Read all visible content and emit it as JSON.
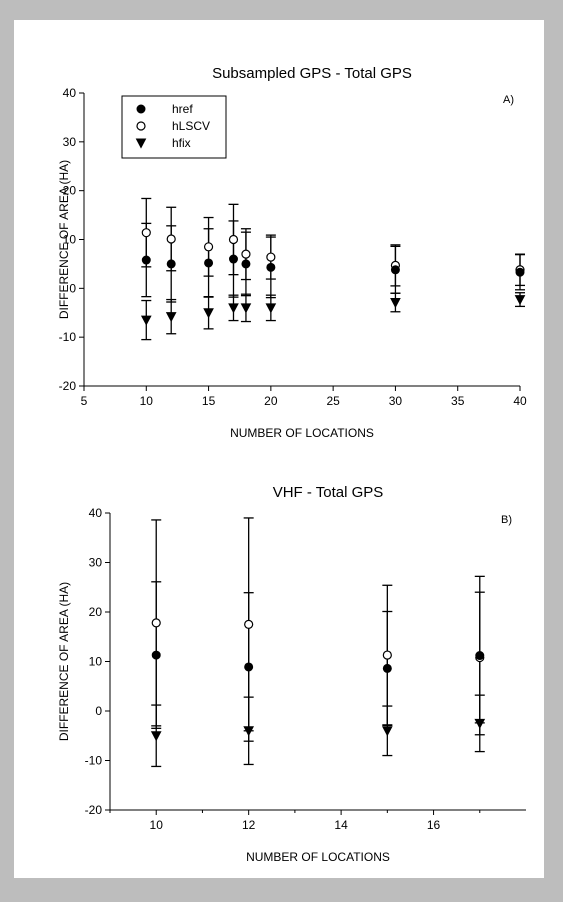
{
  "chart_data": [
    {
      "type": "scatter",
      "title": "Subsampled GPS - Total GPS",
      "panel_label": "A)",
      "xlabel": "NUMBER OF LOCATIONS",
      "ylabel": "DIFFERENCE OF AREA (HA)",
      "xlim": [
        5,
        40
      ],
      "ylim": [
        -20,
        40
      ],
      "xticks": [
        5,
        10,
        15,
        20,
        25,
        30,
        35,
        40
      ],
      "yticks": [
        -20,
        -10,
        0,
        10,
        20,
        30,
        40
      ],
      "grid": false,
      "legend": "top-left",
      "series": [
        {
          "name": "hLSCV",
          "marker": "circle-open",
          "x": [
            10,
            12,
            15,
            17,
            18,
            20,
            30,
            40
          ],
          "y": [
            11.4,
            10.1,
            8.5,
            10.0,
            7.0,
            6.4,
            4.7,
            3.8
          ],
          "err": [
            7.0,
            6.5,
            6.0,
            7.2,
            5.2,
            4.5,
            4.2,
            3.2
          ]
        },
        {
          "name": "href",
          "marker": "circle-filled",
          "x": [
            10,
            12,
            15,
            17,
            18,
            20,
            30,
            40
          ],
          "y": [
            5.8,
            5.0,
            5.2,
            6.0,
            5.0,
            4.3,
            3.8,
            3.3
          ],
          "err": [
            7.5,
            7.8,
            7.0,
            7.8,
            6.5,
            6.2,
            4.8,
            3.6
          ]
        },
        {
          "name": "hfix",
          "marker": "triangle-down",
          "x": [
            10,
            12,
            15,
            17,
            18,
            20,
            30,
            40
          ],
          "y": [
            -6.5,
            -5.8,
            -5.0,
            -4.0,
            -4.0,
            -4.0,
            -2.9,
            -2.3
          ],
          "err": [
            4.0,
            3.5,
            3.3,
            2.6,
            2.8,
            2.6,
            1.9,
            1.4
          ]
        }
      ]
    },
    {
      "type": "scatter",
      "title": "VHF - Total GPS",
      "panel_label": "B)",
      "xlabel": "NUMBER OF LOCATIONS",
      "ylabel": "DIFFERENCE OF AREA (HA)",
      "xlim": [
        9,
        18
      ],
      "ylim": [
        -20,
        40
      ],
      "xticks": [
        10,
        12,
        14,
        16
      ],
      "yticks": [
        -20,
        -10,
        0,
        10,
        20,
        30,
        40
      ],
      "grid": false,
      "legend": "",
      "series": [
        {
          "name": "hLSCV",
          "marker": "circle-open",
          "x": [
            10,
            12,
            15,
            17
          ],
          "y": [
            17.8,
            17.5,
            11.3,
            10.8
          ],
          "err": [
            20.8,
            21.5,
            14.1,
            13.2
          ]
        },
        {
          "name": "href",
          "marker": "circle-filled",
          "x": [
            10,
            12,
            15,
            17
          ],
          "y": [
            11.3,
            8.9,
            8.6,
            11.2
          ],
          "err": [
            14.8,
            15.0,
            11.5,
            16.0
          ]
        },
        {
          "name": "hfix",
          "marker": "triangle-down",
          "x": [
            10,
            12,
            15,
            17
          ],
          "y": [
            -5.0,
            -4.0,
            -4.0,
            -2.5
          ],
          "err": [
            6.2,
            6.8,
            5.0,
            5.7
          ]
        }
      ]
    }
  ]
}
